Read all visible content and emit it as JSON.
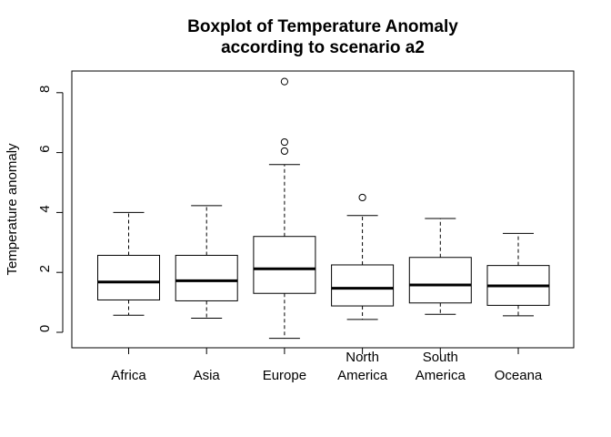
{
  "chart_data": {
    "type": "boxplot",
    "title_line1": "Boxplot of Temperature Anomaly",
    "title_line2": "according to scenario a2",
    "xlabel": "",
    "ylabel": "Temperature anomaly",
    "ylim": [
      -0.5,
      8.2
    ],
    "yticks": [
      "0",
      "2",
      "4",
      "6",
      "8"
    ],
    "grid": false,
    "categories": [
      {
        "label_lines": [
          "",
          "Africa"
        ],
        "whisker_low": 0.57,
        "q1": 1.08,
        "median": 1.68,
        "q3": 2.57,
        "whisker_high": 4.0,
        "outliers": []
      },
      {
        "label_lines": [
          "",
          "Asia"
        ],
        "whisker_low": 0.47,
        "q1": 1.05,
        "median": 1.72,
        "q3": 2.57,
        "whisker_high": 4.23,
        "outliers": []
      },
      {
        "label_lines": [
          "",
          "Europe"
        ],
        "whisker_low": -0.2,
        "q1": 1.3,
        "median": 2.12,
        "q3": 3.2,
        "whisker_high": 5.6,
        "outliers": [
          6.05,
          6.35,
          8.37
        ]
      },
      {
        "label_lines": [
          "North",
          "America"
        ],
        "whisker_low": 0.43,
        "q1": 0.88,
        "median": 1.47,
        "q3": 2.25,
        "whisker_high": 3.9,
        "outliers": [
          4.5
        ]
      },
      {
        "label_lines": [
          "South",
          "America"
        ],
        "whisker_low": 0.6,
        "q1": 0.98,
        "median": 1.58,
        "q3": 2.5,
        "whisker_high": 3.8,
        "outliers": []
      },
      {
        "label_lines": [
          "",
          "Oceana"
        ],
        "whisker_low": 0.55,
        "q1": 0.9,
        "median": 1.55,
        "q3": 2.23,
        "whisker_high": 3.3,
        "outliers": []
      }
    ]
  }
}
